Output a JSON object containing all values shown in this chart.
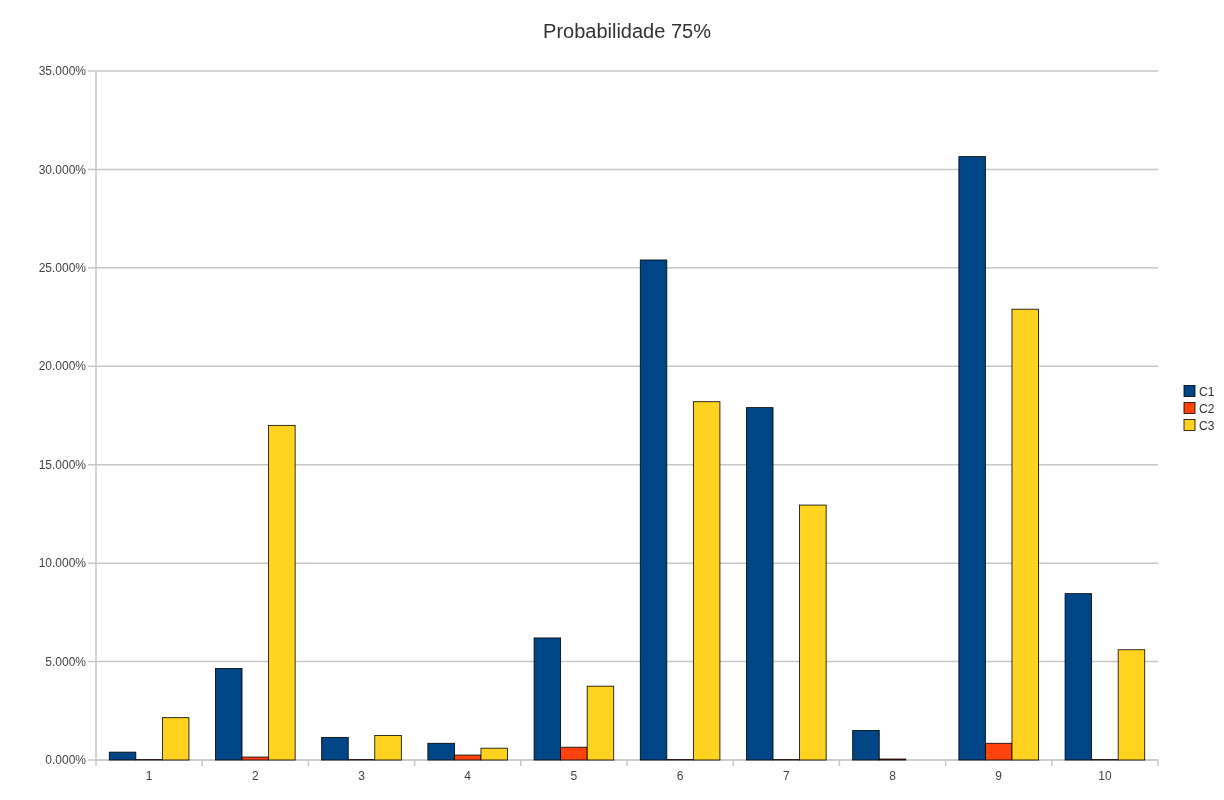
{
  "chart_data": {
    "type": "bar",
    "title": "Probabilidade 75%",
    "categories": [
      "1",
      "2",
      "3",
      "4",
      "5",
      "6",
      "7",
      "8",
      "9",
      "10"
    ],
    "series": [
      {
        "name": "C1",
        "color": "#004586",
        "values": [
          0.4,
          4.65,
          1.15,
          0.85,
          6.2,
          25.4,
          17.9,
          1.5,
          30.65,
          8.45
        ]
      },
      {
        "name": "C2",
        "color": "#ff420e",
        "values": [
          0.02,
          0.15,
          0.02,
          0.25,
          0.65,
          0.02,
          0.02,
          0.05,
          0.85,
          0.02
        ]
      },
      {
        "name": "C3",
        "color": "#ffd320",
        "values": [
          2.15,
          17.0,
          1.25,
          0.6,
          3.75,
          18.2,
          12.95,
          0,
          22.9,
          5.6
        ]
      }
    ],
    "ylim": [
      0,
      35
    ],
    "yticks": [
      {
        "value": 0,
        "label": "0.000%"
      },
      {
        "value": 5,
        "label": "5.000%"
      },
      {
        "value": 10,
        "label": "10.000%"
      },
      {
        "value": 15,
        "label": "15.000%"
      },
      {
        "value": 20,
        "label": "20.000%"
      },
      {
        "value": 25,
        "label": "25.000%"
      },
      {
        "value": 30,
        "label": "30.000%"
      },
      {
        "value": 35,
        "label": "35.000%"
      }
    ],
    "grid": "y",
    "legend": "right"
  }
}
